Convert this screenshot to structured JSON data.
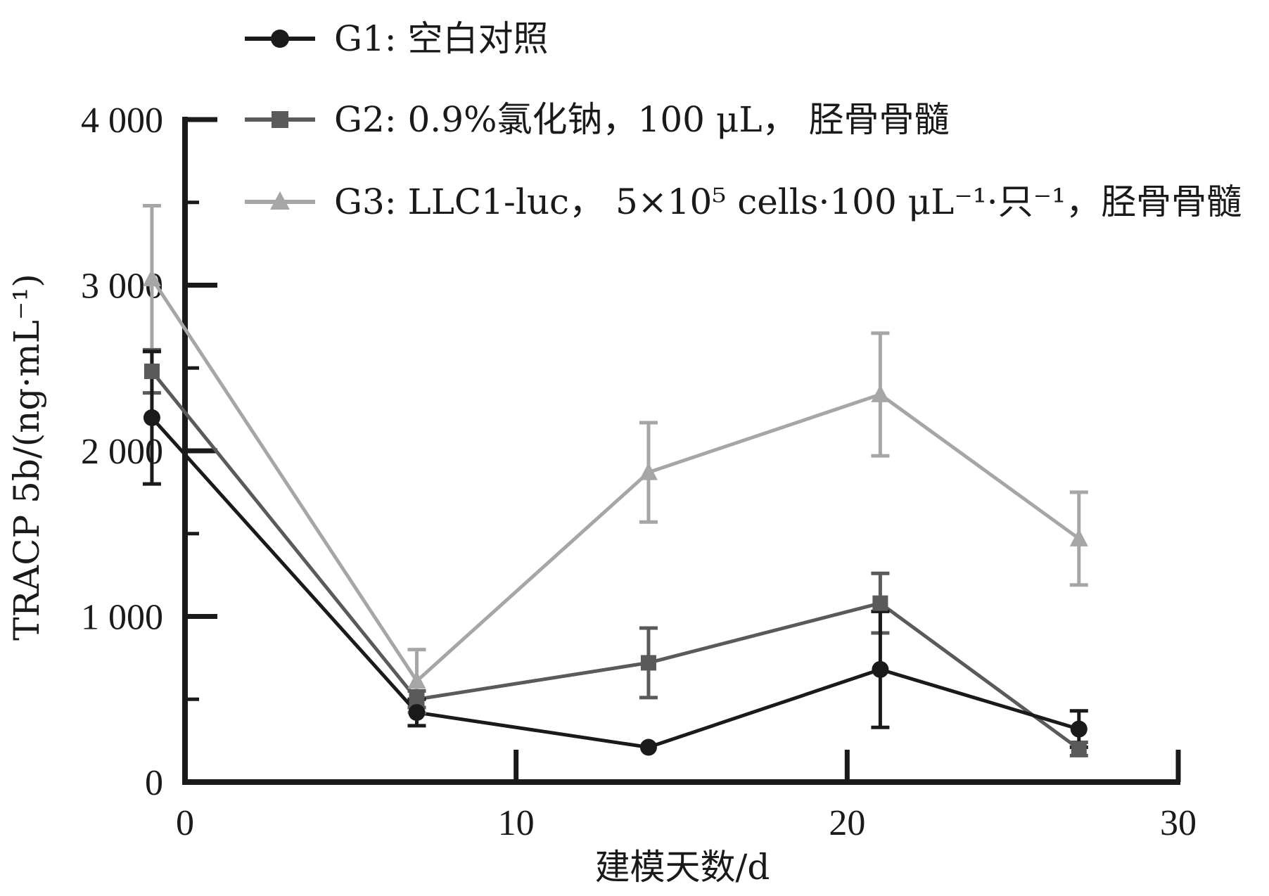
{
  "chart_data": {
    "type": "line",
    "title": "",
    "xlabel": "建模天数/d",
    "ylabel": "TRACP 5b/(ng·mL⁻¹)",
    "xlim": [
      -1,
      30
    ],
    "ylim": [
      0,
      4000
    ],
    "x_ticks": [
      0,
      10,
      20,
      30
    ],
    "x_tick_labels": [
      "0",
      "10",
      "20",
      "30"
    ],
    "y_ticks": [
      0,
      1000,
      2000,
      3000,
      4000
    ],
    "y_tick_labels": [
      "0",
      "1 000",
      "2 000",
      "3 000",
      "4 000"
    ],
    "grid": false,
    "legend_position": "top",
    "x": [
      -1,
      7,
      14,
      21,
      27
    ],
    "series": [
      {
        "name": "G1: 空白对照",
        "marker": "circle",
        "color": "#1a1a1a",
        "values": [
          2200,
          420,
          210,
          680,
          320
        ],
        "errors": [
          400,
          80,
          0,
          350,
          110
        ]
      },
      {
        "name": "G2: 0.9%氯化钠，100 μL， 胫骨骨髓",
        "marker": "square",
        "color": "#5a5a5a",
        "values": [
          2480,
          500,
          720,
          1080,
          200
        ],
        "errors": [
          130,
          50,
          210,
          180,
          40
        ]
      },
      {
        "name": "G3: LLC1-luc， 5×10⁵ cells·100 μL⁻¹·只⁻¹，胫骨骨髓",
        "marker": "triangle",
        "color": "#a6a6a6",
        "values": [
          3040,
          610,
          1870,
          2340,
          1470
        ],
        "errors": [
          440,
          190,
          300,
          370,
          280
        ]
      }
    ]
  }
}
